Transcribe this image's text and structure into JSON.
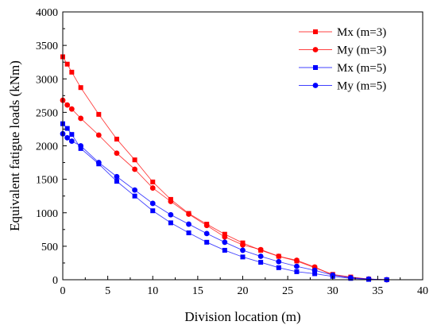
{
  "chart_data": {
    "type": "line",
    "xlabel": "Division location (m)",
    "ylabel": "Equivalent fatigue loads (kNm)",
    "xlim": [
      0,
      40
    ],
    "ylim": [
      0,
      4000
    ],
    "xticks": [
      0,
      5,
      10,
      15,
      20,
      25,
      30,
      35,
      40
    ],
    "yticks": [
      0,
      500,
      1000,
      1500,
      2000,
      2500,
      3000,
      3500,
      4000
    ],
    "grid": false,
    "legend_position": "top-right",
    "series": [
      {
        "name": "Mx (m=3)",
        "color": "#ff0000",
        "marker": "square",
        "x": [
          0,
          0.5,
          1,
          2,
          4,
          6,
          8,
          10,
          12,
          14,
          16,
          18,
          20,
          22,
          24,
          26,
          28,
          30,
          32,
          34,
          36
        ],
        "y": [
          3330,
          3220,
          3100,
          2870,
          2470,
          2100,
          1790,
          1460,
          1200,
          990,
          830,
          680,
          550,
          440,
          350,
          280,
          180,
          80,
          40,
          10,
          0
        ]
      },
      {
        "name": "My (m=3)",
        "color": "#ff0000",
        "marker": "circle",
        "x": [
          0,
          0.5,
          1,
          2,
          4,
          6,
          8,
          10,
          12,
          14,
          16,
          18,
          20,
          22,
          24,
          26,
          28,
          30,
          32,
          34,
          36
        ],
        "y": [
          2680,
          2610,
          2550,
          2410,
          2160,
          1890,
          1650,
          1370,
          1170,
          980,
          810,
          640,
          520,
          450,
          350,
          290,
          190,
          70,
          30,
          10,
          0
        ]
      },
      {
        "name": "Mx (m=5)",
        "color": "#0000ff",
        "marker": "square",
        "x": [
          0,
          0.5,
          1,
          2,
          4,
          6,
          8,
          10,
          12,
          14,
          16,
          18,
          20,
          22,
          24,
          26,
          28,
          30,
          32,
          34,
          36
        ],
        "y": [
          2330,
          2260,
          2170,
          1960,
          1730,
          1470,
          1250,
          1030,
          850,
          700,
          560,
          440,
          340,
          260,
          180,
          120,
          90,
          50,
          20,
          5,
          0
        ]
      },
      {
        "name": "My (m=5)",
        "color": "#0000ff",
        "marker": "circle",
        "x": [
          0,
          0.5,
          1,
          2,
          4,
          6,
          8,
          10,
          12,
          14,
          16,
          18,
          20,
          22,
          24,
          26,
          28,
          30,
          32,
          34,
          36
        ],
        "y": [
          2180,
          2120,
          2070,
          2000,
          1750,
          1540,
          1340,
          1140,
          970,
          830,
          690,
          560,
          440,
          350,
          270,
          200,
          140,
          70,
          30,
          10,
          0
        ]
      }
    ]
  }
}
